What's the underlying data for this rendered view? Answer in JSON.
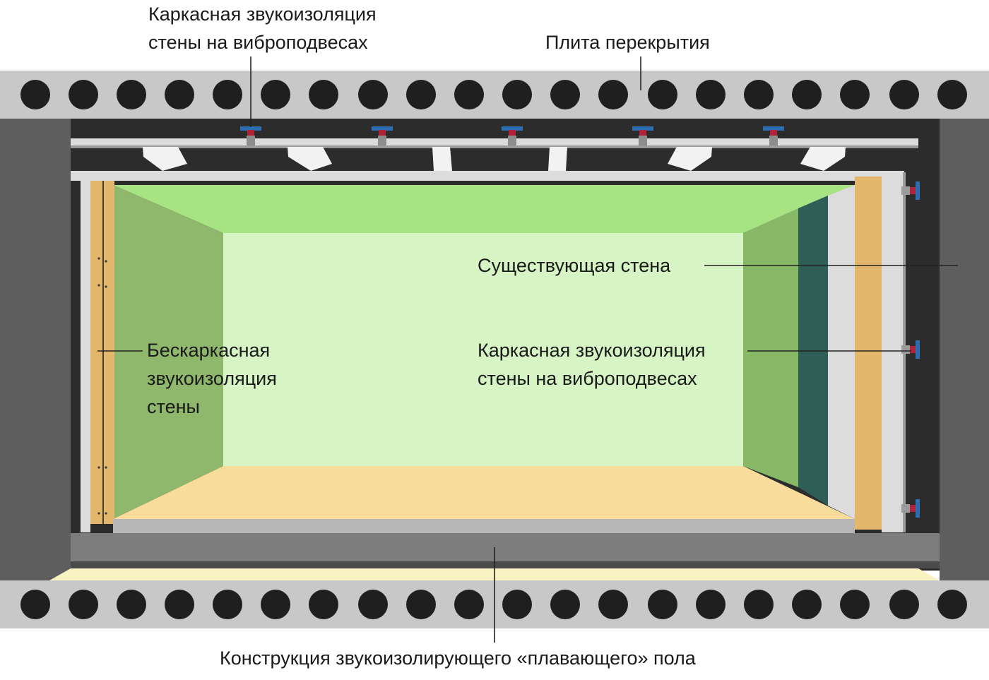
{
  "colors": {
    "slab": "#c8c8c8",
    "hole": "#1f1f1f",
    "wall_outer": "#5e5e5e",
    "wall_inner": "#2c2c2c",
    "ceiling_panel": "#a7e283",
    "back_wall": "#d7f5c4",
    "side_wall_left": "#8fb86d",
    "side_wall_right": "#86b866",
    "floor": "#f8dc9c",
    "insulation": "#e2b76c",
    "drywall": "#dcdcdc",
    "dark_green": "#2f5e56",
    "mount_blue": "#2b6fb0",
    "mount_red": "#b0233a",
    "screed": "#b7b7b7",
    "underlay": "#f9f2c2",
    "leader": "#222222"
  },
  "labels": {
    "ceiling_frame": [
      "Каркасная звукоизоляция",
      "стены на виброподвесах"
    ],
    "floor_slab": "Плита перекрытия",
    "existing_wall": "Существующая стена",
    "frameless": [
      "Бескаркасная",
      "звукоизоляция",
      "стены"
    ],
    "wall_frame": [
      "Каркасная звукоизоляция",
      "стены на виброподвесах"
    ],
    "floating_floor": "Конструкция звукоизолирующего «плавающего» пола"
  },
  "icons": {
    "slab_hole": "circle-hole-icon",
    "vibro_mount": "vibro-hanger-icon",
    "profile": "metal-profile-icon"
  }
}
